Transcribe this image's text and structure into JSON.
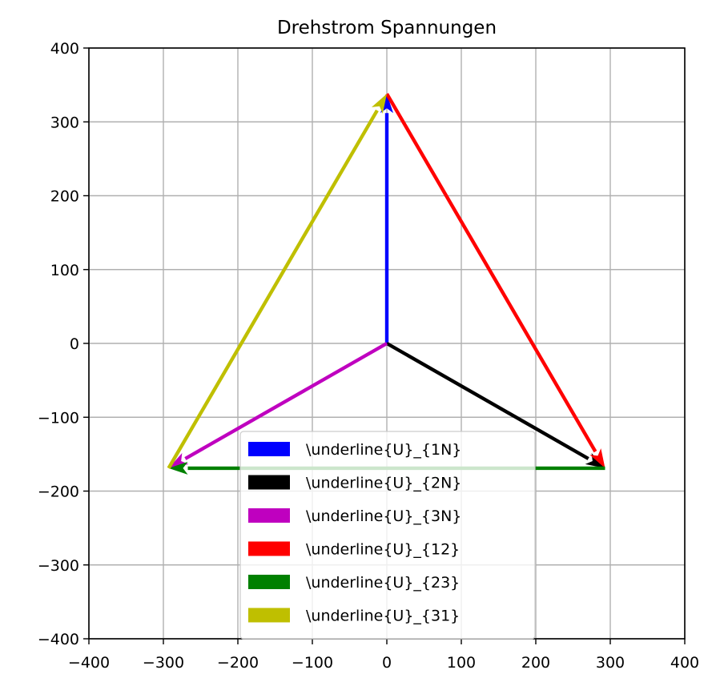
{
  "chart_data": {
    "type": "quiver",
    "title": "Drehstrom Spannungen",
    "xlabel": "",
    "ylabel": "",
    "xlim": [
      -400,
      400
    ],
    "ylim": [
      -400,
      400
    ],
    "xticks": [
      -400,
      -300,
      -200,
      -100,
      0,
      100,
      200,
      300,
      400
    ],
    "yticks": [
      -400,
      -300,
      -200,
      -100,
      0,
      100,
      200,
      300,
      400
    ],
    "grid": true,
    "legend_position": "lower-center",
    "series": [
      {
        "name": "\\underline{U}_{1N}",
        "color": "#0000ff",
        "start": [
          0,
          0
        ],
        "end": [
          0,
          338
        ]
      },
      {
        "name": "\\underline{U}_{2N}",
        "color": "#000000",
        "start": [
          0,
          0
        ],
        "end": [
          293,
          -169
        ]
      },
      {
        "name": "\\underline{U}_{3N}",
        "color": "#bf00bf",
        "start": [
          0,
          0
        ],
        "end": [
          -293,
          -169
        ]
      },
      {
        "name": "\\underline{U}_{12}",
        "color": "#ff0000",
        "start": [
          0,
          338
        ],
        "end": [
          293,
          -169
        ]
      },
      {
        "name": "\\underline{U}_{23}",
        "color": "#008000",
        "start": [
          293,
          -169
        ],
        "end": [
          -293,
          -169
        ]
      },
      {
        "name": "\\underline{U}_{31}",
        "color": "#bfbf00",
        "start": [
          -293,
          -169
        ],
        "end": [
          0,
          338
        ]
      }
    ]
  }
}
